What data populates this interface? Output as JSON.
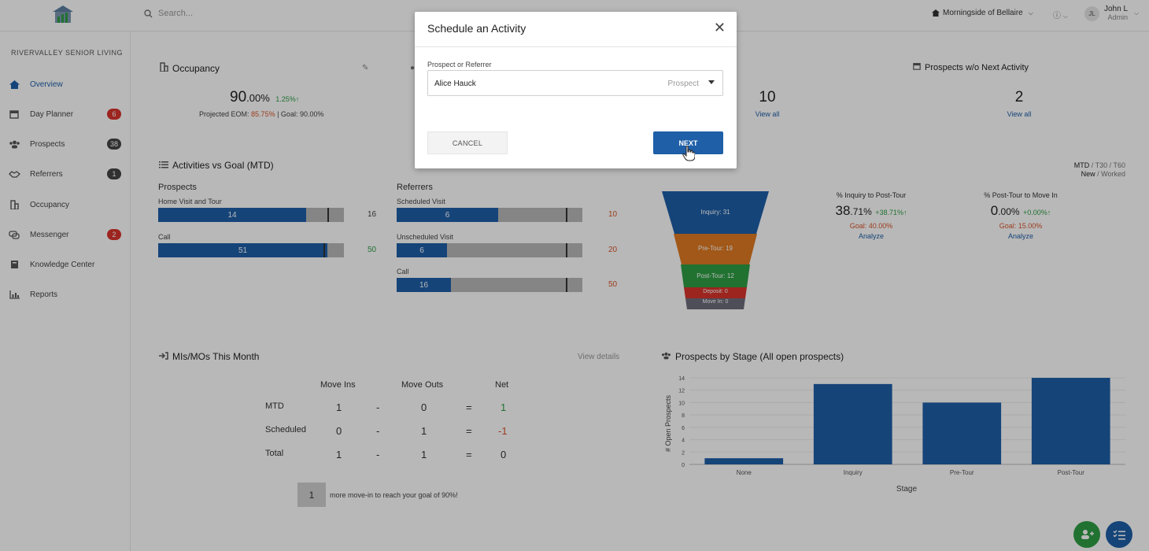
{
  "header": {
    "search_placeholder": "Search...",
    "community": "Morningside of Bellaire",
    "user_initials": "JL",
    "user_name": "John L",
    "user_role": "Admin"
  },
  "sidebar": {
    "org": "RIVERVALLEY SENIOR LIVING",
    "items": [
      {
        "label": "Overview",
        "icon": "home-icon"
      },
      {
        "label": "Day Planner",
        "icon": "calendar-icon",
        "badge": "6"
      },
      {
        "label": "Prospects",
        "icon": "people-icon",
        "badge": "38"
      },
      {
        "label": "Referrers",
        "icon": "handshake-icon",
        "badge": "1"
      },
      {
        "label": "Occupancy",
        "icon": "building-icon"
      },
      {
        "label": "Messenger",
        "icon": "chat-icon",
        "badge": "2"
      },
      {
        "label": "Knowledge Center",
        "icon": "book-icon"
      },
      {
        "label": "Reports",
        "icon": "chart-icon"
      }
    ]
  },
  "occupancy": {
    "title": "Occupancy",
    "value_main": "90",
    "value_dec": ".00%",
    "delta": "1.25%",
    "projected_label": "Projected EOM:",
    "projected_value": "85.75%",
    "goal_label": "| Goal: 90.00%"
  },
  "stats": {
    "count_a": "10",
    "count_a_link": "View all",
    "next_activity_title": "Prospects w/o Next Activity",
    "count_b": "2",
    "count_b_link": "View all"
  },
  "activities": {
    "title": "Activities vs Goal (MTD)",
    "prospects_heading": "Prospects",
    "referrers_heading": "Referrers",
    "prospects": [
      {
        "label": "Home Visit and Tour",
        "value": 14,
        "goal": 16,
        "value_text": "14",
        "goal_text": "16",
        "goal_color": "#444444"
      },
      {
        "label": "Call",
        "value": 51,
        "goal": 50,
        "value_text": "51",
        "goal_text": "50",
        "goal_color": "#2e9e44"
      }
    ],
    "referrers": [
      {
        "label": "Scheduled Visit",
        "value": 6,
        "goal": 10,
        "value_text": "6",
        "goal_text": "10",
        "goal_color": "#d9552b"
      },
      {
        "label": "Unscheduled Visit",
        "value": 6,
        "goal": 20,
        "value_text": "6",
        "goal_text": "20",
        "goal_color": "#d9552b"
      },
      {
        "label": "Call",
        "value": 16,
        "goal": 50,
        "value_text": "16",
        "goal_text": "50",
        "goal_color": "#d9552b"
      }
    ]
  },
  "funnel": {
    "toggle_a_1": "MTD",
    "toggle_a_2": "/ T30 / T60",
    "toggle_b_1": "New",
    "toggle_b_2": "/ Worked",
    "stages": [
      "Inquiry: 31",
      "Pre-Tour: 19",
      "Post-Tour: 12",
      "Deposit: 0",
      "Move In: 0"
    ],
    "metric1_title": "% Inquiry to Post-Tour",
    "metric1_main": "38",
    "metric1_dec": ".71%",
    "metric1_delta": "+38.71%",
    "metric1_goal": "Goal: 40.00%",
    "metric1_link": "Analyze",
    "metric2_title": "% Post-Tour to Move In",
    "metric2_main": "0",
    "metric2_dec": ".00%",
    "metric2_delta": "+0.00%",
    "metric2_goal": "Goal: 15.00%",
    "metric2_link": "Analyze"
  },
  "mimo": {
    "title": "MIs/MOs This Month",
    "view_details": "View details",
    "col_in": "Move Ins",
    "col_out": "Move Outs",
    "col_net": "Net",
    "rows": [
      {
        "label": "MTD",
        "in": "1",
        "out": "0",
        "net": "1",
        "net_color": "#2e9e44"
      },
      {
        "label": "Scheduled",
        "in": "0",
        "out": "1",
        "net": "-1",
        "net_color": "#d9552b"
      },
      {
        "label": "Total",
        "in": "1",
        "out": "1",
        "net": "0",
        "net_color": "#333333"
      }
    ],
    "goal_count": "1",
    "goal_text": "more move-in to reach your goal of 90%!"
  },
  "stage_chart": {
    "title": "Prospects by Stage (All open prospects)"
  },
  "chart_data": {
    "type": "bar",
    "categories": [
      "None",
      "Inquiry",
      "Pre-Tour",
      "Post-Tour"
    ],
    "values": [
      1,
      13,
      10,
      14
    ],
    "xlabel": "Stage",
    "ylabel": "# Open Prospects",
    "ylim": [
      0,
      14
    ],
    "yticks": [
      0,
      2,
      4,
      6,
      8,
      10,
      12,
      14
    ],
    "color": "#1e5fa8"
  },
  "modal": {
    "title": "Schedule an Activity",
    "field_label": "Prospect or Referrer",
    "field_value": "Alice Hauck",
    "field_type": "Prospect",
    "cancel": "CANCEL",
    "next": "NEXT"
  }
}
